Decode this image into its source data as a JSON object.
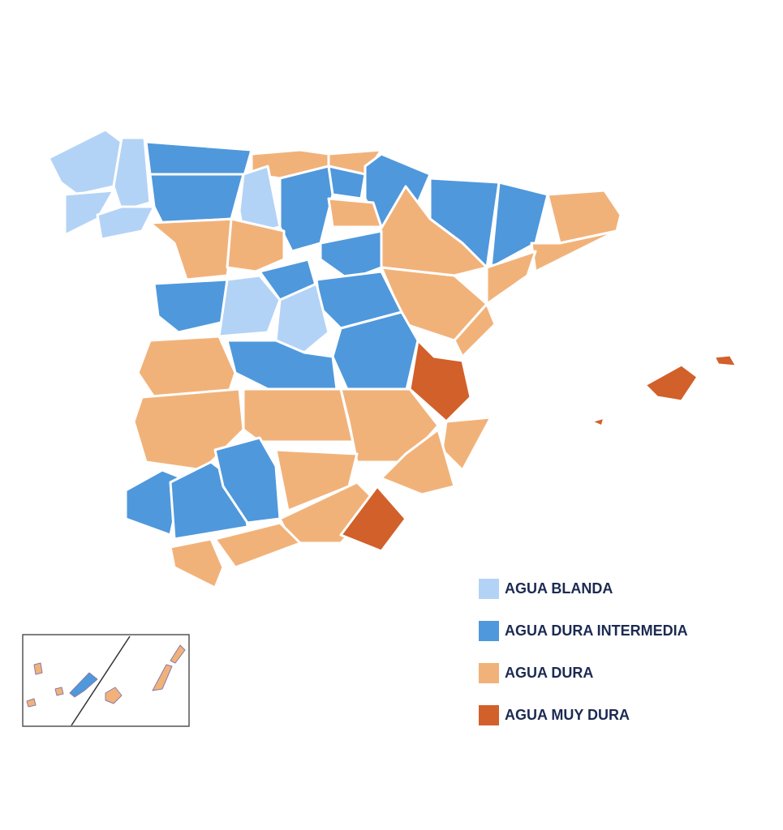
{
  "legend": {
    "items": [
      {
        "label": "AGUA BLANDA",
        "color": "#b3d3f6"
      },
      {
        "label": "AGUA DURA INTERMEDIA",
        "color": "#4f98dc"
      },
      {
        "label": "AGUA DURA",
        "color": "#f1b27a"
      },
      {
        "label": "AGUA MUY DURA",
        "color": "#d2602a"
      }
    ]
  }
}
